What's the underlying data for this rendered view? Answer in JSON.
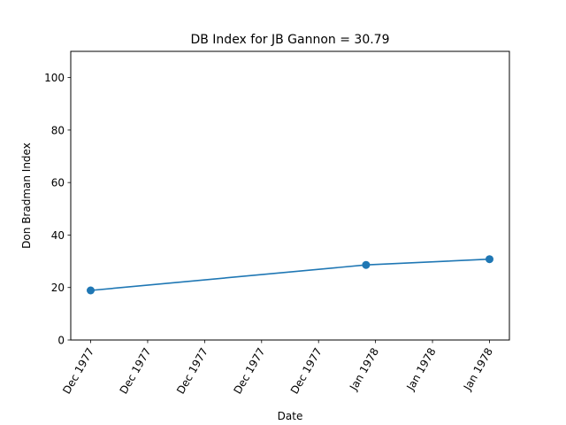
{
  "chart_data": {
    "type": "line",
    "title": "DB Index for JB Gannon = 30.79",
    "xlabel": "Date",
    "ylabel": "Don Bradman Index",
    "ylim": [
      0,
      110
    ],
    "y_ticks": [
      0,
      20,
      40,
      60,
      80,
      100
    ],
    "x_tick_labels": [
      "Dec 1977",
      "Dec 1977",
      "Dec 1977",
      "Dec 1977",
      "Dec 1977",
      "Jan 1978",
      "Jan 1978",
      "Jan 1978"
    ],
    "grid": false,
    "series": [
      {
        "x": [
          "1977-12-02",
          "1977-12-31",
          "1978-01-13"
        ],
        "values": [
          18.9,
          28.6,
          30.79
        ],
        "color": "#1f77b4"
      }
    ]
  }
}
